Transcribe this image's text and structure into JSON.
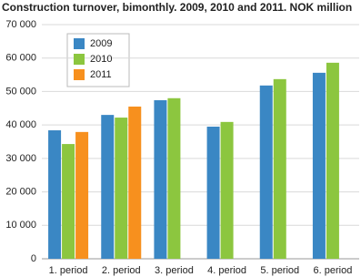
{
  "chart_data": {
    "type": "bar",
    "title": "Construction turnover, bimonthly. 2009, 2010 and 2011. NOK million",
    "categories": [
      "1. period",
      "2. period",
      "3. period",
      "4. period",
      "5. period",
      "6. period"
    ],
    "series": [
      {
        "name": "2009",
        "color": "#3a87c4",
        "values": [
          38400,
          43000,
          47400,
          39500,
          51800,
          55600
        ]
      },
      {
        "name": "2010",
        "color": "#8cc63f",
        "values": [
          34300,
          42200,
          48000,
          40900,
          53700,
          58600
        ]
      },
      {
        "name": "2011",
        "color": "#f7901e",
        "values": [
          37900,
          45500,
          null,
          null,
          null,
          null
        ]
      }
    ],
    "ylim": [
      0,
      70000
    ],
    "yticks": [
      0,
      {
        "value": 10000,
        "label": "10 000"
      },
      {
        "value": 20000,
        "label": "20 000"
      },
      {
        "value": 30000,
        "label": "30 000"
      },
      {
        "value": 40000,
        "label": "40 000"
      },
      {
        "value": 50000,
        "label": "50 000"
      },
      {
        "value": 60000,
        "label": "60 000"
      },
      {
        "value": 70000,
        "label": "70 000"
      }
    ],
    "grid": true
  }
}
